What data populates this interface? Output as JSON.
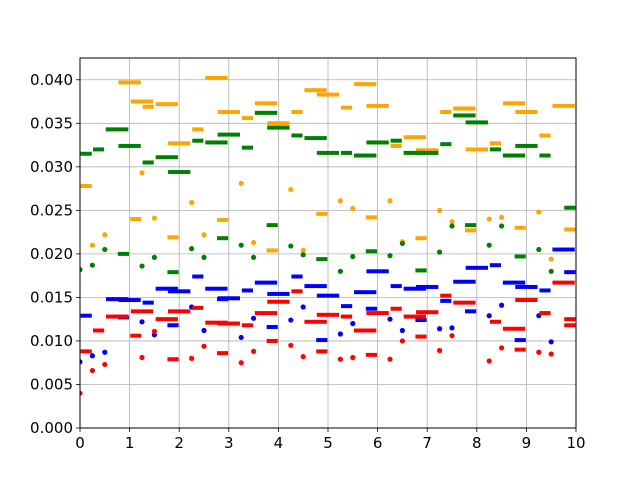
{
  "chart_data": {
    "type": "scatter",
    "title": "",
    "xlabel": "",
    "ylabel": "",
    "xlim": [
      0,
      10
    ],
    "ylim": [
      0,
      0.0425
    ],
    "grid": true,
    "legend": "none",
    "x_ticks": [
      "0",
      "1",
      "2",
      "3",
      "4",
      "5",
      "6",
      "7",
      "8",
      "9",
      "10"
    ],
    "y_ticks": [
      "0.000",
      "0.005",
      "0.010",
      "0.015",
      "0.020",
      "0.025",
      "0.030",
      "0.035",
      "0.040"
    ],
    "series": [
      {
        "color": "#ffa500",
        "values": [
          [
            0.0,
            0.0278,
            0.25
          ],
          [
            0.25,
            0.021,
            0.0
          ],
          [
            0.5,
            0.0343,
            0.25
          ],
          [
            0.5,
            0.0222,
            0.0
          ],
          [
            0.75,
            0.0397,
            0.5
          ],
          [
            1.0,
            0.024,
            0.25
          ],
          [
            1.0,
            0.0375,
            0.5
          ],
          [
            1.25,
            0.0293,
            0.0
          ],
          [
            1.25,
            0.0369,
            0.25
          ],
          [
            1.5,
            0.0241,
            0.0
          ],
          [
            1.5,
            0.0372,
            0.5
          ],
          [
            1.75,
            0.0219,
            0.25
          ],
          [
            1.75,
            0.0327,
            0.5
          ],
          [
            2.25,
            0.0259,
            0.0
          ],
          [
            2.25,
            0.0343,
            0.25
          ],
          [
            2.5,
            0.0222,
            0.0
          ],
          [
            2.5,
            0.0402,
            0.5
          ],
          [
            2.75,
            0.0239,
            0.25
          ],
          [
            2.75,
            0.0363,
            0.5
          ],
          [
            3.25,
            0.0281,
            0.0
          ],
          [
            3.25,
            0.0356,
            0.25
          ],
          [
            3.5,
            0.0213,
            0.0
          ],
          [
            3.5,
            0.0373,
            0.5
          ],
          [
            3.75,
            0.0204,
            0.25
          ],
          [
            3.75,
            0.035,
            0.5
          ],
          [
            4.25,
            0.0274,
            0.0
          ],
          [
            4.25,
            0.0363,
            0.25
          ],
          [
            4.5,
            0.0204,
            0.0
          ],
          [
            4.5,
            0.0388,
            0.5
          ],
          [
            4.75,
            0.0246,
            0.25
          ],
          [
            4.75,
            0.0383,
            0.5
          ],
          [
            5.25,
            0.0261,
            0.0
          ],
          [
            5.25,
            0.0368,
            0.25
          ],
          [
            5.5,
            0.0252,
            0.0
          ],
          [
            5.5,
            0.0395,
            0.5
          ],
          [
            5.75,
            0.0242,
            0.25
          ],
          [
            5.75,
            0.037,
            0.5
          ],
          [
            6.25,
            0.0261,
            0.0
          ],
          [
            6.25,
            0.0324,
            0.25
          ],
          [
            6.5,
            0.0214,
            0.0
          ],
          [
            6.5,
            0.0334,
            0.5
          ],
          [
            6.75,
            0.0218,
            0.25
          ],
          [
            6.75,
            0.0319,
            0.5
          ],
          [
            7.25,
            0.025,
            0.0
          ],
          [
            7.25,
            0.0363,
            0.25
          ],
          [
            7.5,
            0.0237,
            0.0
          ],
          [
            7.5,
            0.0367,
            0.5
          ],
          [
            7.75,
            0.0227,
            0.25
          ],
          [
            7.75,
            0.032,
            0.5
          ],
          [
            8.25,
            0.024,
            0.0
          ],
          [
            8.25,
            0.0327,
            0.25
          ],
          [
            8.5,
            0.0242,
            0.0
          ],
          [
            8.5,
            0.0373,
            0.5
          ],
          [
            8.75,
            0.023,
            0.25
          ],
          [
            8.75,
            0.0363,
            0.5
          ],
          [
            9.25,
            0.0248,
            0.0
          ],
          [
            9.25,
            0.0336,
            0.25
          ],
          [
            9.5,
            0.0194,
            0.0
          ],
          [
            9.5,
            0.037,
            0.5
          ],
          [
            9.75,
            0.0228,
            0.25
          ]
        ]
      },
      {
        "color": "#008000",
        "values": [
          [
            0.0,
            0.0182,
            0.0
          ],
          [
            0.0,
            0.0315,
            0.25
          ],
          [
            0.25,
            0.0187,
            0.0
          ],
          [
            0.25,
            0.032,
            0.25
          ],
          [
            0.5,
            0.0205,
            0.0
          ],
          [
            0.5,
            0.0343,
            0.5
          ],
          [
            0.75,
            0.02,
            0.25
          ],
          [
            0.75,
            0.0324,
            0.5
          ],
          [
            1.25,
            0.0186,
            0.0
          ],
          [
            1.25,
            0.0305,
            0.25
          ],
          [
            1.5,
            0.0196,
            0.0
          ],
          [
            1.5,
            0.0311,
            0.5
          ],
          [
            1.75,
            0.0179,
            0.25
          ],
          [
            1.75,
            0.0294,
            0.5
          ],
          [
            2.25,
            0.0206,
            0.0
          ],
          [
            2.25,
            0.033,
            0.25
          ],
          [
            2.5,
            0.0196,
            0.0
          ],
          [
            2.5,
            0.0328,
            0.5
          ],
          [
            2.75,
            0.0218,
            0.25
          ],
          [
            2.75,
            0.0337,
            0.5
          ],
          [
            3.25,
            0.021,
            0.0
          ],
          [
            3.25,
            0.0322,
            0.25
          ],
          [
            3.5,
            0.0196,
            0.0
          ],
          [
            3.5,
            0.0362,
            0.5
          ],
          [
            3.75,
            0.0233,
            0.25
          ],
          [
            3.75,
            0.0345,
            0.5
          ],
          [
            4.25,
            0.0209,
            0.0
          ],
          [
            4.25,
            0.0336,
            0.25
          ],
          [
            4.5,
            0.0199,
            0.0
          ],
          [
            4.5,
            0.0333,
            0.5
          ],
          [
            4.75,
            0.0194,
            0.25
          ],
          [
            4.75,
            0.0316,
            0.5
          ],
          [
            5.25,
            0.018,
            0.0
          ],
          [
            5.25,
            0.0316,
            0.25
          ],
          [
            5.5,
            0.0197,
            0.0
          ],
          [
            5.5,
            0.0313,
            0.5
          ],
          [
            5.75,
            0.0203,
            0.25
          ],
          [
            5.75,
            0.0328,
            0.5
          ],
          [
            6.25,
            0.0198,
            0.0
          ],
          [
            6.25,
            0.033,
            0.25
          ],
          [
            6.5,
            0.0212,
            0.0
          ],
          [
            6.5,
            0.0316,
            0.5
          ],
          [
            6.75,
            0.0181,
            0.25
          ],
          [
            6.75,
            0.0316,
            0.5
          ],
          [
            7.25,
            0.0202,
            0.0
          ],
          [
            7.25,
            0.0326,
            0.25
          ],
          [
            7.5,
            0.0232,
            0.0
          ],
          [
            7.5,
            0.0359,
            0.5
          ],
          [
            7.75,
            0.0233,
            0.25
          ],
          [
            7.75,
            0.0351,
            0.5
          ],
          [
            8.25,
            0.021,
            0.0
          ],
          [
            8.25,
            0.032,
            0.25
          ],
          [
            8.5,
            0.0232,
            0.0
          ],
          [
            8.5,
            0.0313,
            0.5
          ],
          [
            8.75,
            0.0197,
            0.25
          ],
          [
            8.75,
            0.0324,
            0.5
          ],
          [
            9.25,
            0.0205,
            0.0
          ],
          [
            9.25,
            0.0313,
            0.25
          ],
          [
            9.5,
            0.018,
            0.0
          ],
          [
            9.75,
            0.0253,
            0.25
          ]
        ]
      },
      {
        "color": "#0000ff",
        "values": [
          [
            0.0,
            0.0076,
            0.0
          ],
          [
            0.0,
            0.0129,
            0.25
          ],
          [
            0.25,
            0.0083,
            0.0
          ],
          [
            0.5,
            0.0148,
            0.5
          ],
          [
            0.5,
            0.0087,
            0.0
          ],
          [
            0.75,
            0.0127,
            0.25
          ],
          [
            0.75,
            0.0147,
            0.5
          ],
          [
            1.25,
            0.0122,
            0.0
          ],
          [
            1.25,
            0.0144,
            0.25
          ],
          [
            1.5,
            0.0107,
            0.0
          ],
          [
            1.5,
            0.016,
            0.5
          ],
          [
            1.75,
            0.0118,
            0.25
          ],
          [
            1.75,
            0.0157,
            0.5
          ],
          [
            2.25,
            0.0139,
            0.0
          ],
          [
            2.25,
            0.0174,
            0.25
          ],
          [
            2.5,
            0.0112,
            0.0
          ],
          [
            2.5,
            0.016,
            0.5
          ],
          [
            2.75,
            0.0148,
            0.25
          ],
          [
            2.75,
            0.0149,
            0.5
          ],
          [
            3.25,
            0.0104,
            0.0
          ],
          [
            3.25,
            0.0158,
            0.25
          ],
          [
            3.5,
            0.0126,
            0.0
          ],
          [
            3.5,
            0.0167,
            0.5
          ],
          [
            3.75,
            0.0116,
            0.25
          ],
          [
            3.75,
            0.0154,
            0.5
          ],
          [
            4.25,
            0.0124,
            0.0
          ],
          [
            4.25,
            0.0174,
            0.25
          ],
          [
            4.5,
            0.0139,
            0.0
          ],
          [
            4.5,
            0.0163,
            0.5
          ],
          [
            4.75,
            0.0101,
            0.25
          ],
          [
            4.75,
            0.0152,
            0.5
          ],
          [
            5.25,
            0.0108,
            0.0
          ],
          [
            5.25,
            0.014,
            0.25
          ],
          [
            5.5,
            0.012,
            0.0
          ],
          [
            5.5,
            0.0156,
            0.5
          ],
          [
            5.75,
            0.0137,
            0.25
          ],
          [
            5.75,
            0.018,
            0.5
          ],
          [
            6.25,
            0.0125,
            0.0
          ],
          [
            6.25,
            0.0163,
            0.25
          ],
          [
            6.5,
            0.0112,
            0.0
          ],
          [
            6.5,
            0.016,
            0.5
          ],
          [
            6.75,
            0.0124,
            0.25
          ],
          [
            6.75,
            0.0162,
            0.5
          ],
          [
            7.25,
            0.0114,
            0.0
          ],
          [
            7.25,
            0.0146,
            0.25
          ],
          [
            7.5,
            0.0115,
            0.0
          ],
          [
            7.5,
            0.0168,
            0.5
          ],
          [
            7.75,
            0.0134,
            0.25
          ],
          [
            7.75,
            0.0184,
            0.5
          ],
          [
            8.25,
            0.0129,
            0.0
          ],
          [
            8.25,
            0.0187,
            0.25
          ],
          [
            8.5,
            0.0141,
            0.0
          ],
          [
            8.5,
            0.0167,
            0.5
          ],
          [
            8.75,
            0.0101,
            0.25
          ],
          [
            8.75,
            0.0162,
            0.5
          ],
          [
            9.25,
            0.0129,
            0.0
          ],
          [
            9.25,
            0.0158,
            0.25
          ],
          [
            9.5,
            0.0099,
            0.0
          ],
          [
            9.5,
            0.0205,
            0.5
          ],
          [
            9.75,
            0.0179,
            0.25
          ]
        ]
      },
      {
        "color": "#ff0000",
        "values": [
          [
            0.0,
            0.004,
            0.0
          ],
          [
            0.0,
            0.0088,
            0.25
          ],
          [
            0.25,
            0.0066,
            0.0
          ],
          [
            0.25,
            0.0112,
            0.25
          ],
          [
            0.5,
            0.0073,
            0.0
          ],
          [
            0.5,
            0.0128,
            0.5
          ],
          [
            1.0,
            0.0106,
            0.25
          ],
          [
            1.0,
            0.0134,
            0.5
          ],
          [
            1.25,
            0.0081,
            0.0
          ],
          [
            1.5,
            0.0111,
            0.0
          ],
          [
            1.5,
            0.0125,
            0.5
          ],
          [
            1.75,
            0.0079,
            0.25
          ],
          [
            1.75,
            0.0134,
            0.5
          ],
          [
            2.25,
            0.008,
            0.0
          ],
          [
            2.25,
            0.0138,
            0.25
          ],
          [
            2.5,
            0.0094,
            0.0
          ],
          [
            2.5,
            0.0121,
            0.5
          ],
          [
            2.75,
            0.0086,
            0.25
          ],
          [
            2.75,
            0.012,
            0.5
          ],
          [
            3.25,
            0.0075,
            0.0
          ],
          [
            3.25,
            0.0118,
            0.25
          ],
          [
            3.5,
            0.0088,
            0.0
          ],
          [
            3.5,
            0.0132,
            0.5
          ],
          [
            3.75,
            0.01,
            0.25
          ],
          [
            3.75,
            0.0145,
            0.5
          ],
          [
            4.25,
            0.0095,
            0.0
          ],
          [
            4.25,
            0.0157,
            0.25
          ],
          [
            4.5,
            0.0082,
            0.0
          ],
          [
            4.5,
            0.0122,
            0.5
          ],
          [
            4.75,
            0.0088,
            0.25
          ],
          [
            4.75,
            0.013,
            0.5
          ],
          [
            5.25,
            0.0079,
            0.0
          ],
          [
            5.25,
            0.0128,
            0.25
          ],
          [
            5.5,
            0.0081,
            0.0
          ],
          [
            5.5,
            0.0112,
            0.5
          ],
          [
            5.75,
            0.0084,
            0.25
          ],
          [
            5.75,
            0.0132,
            0.5
          ],
          [
            6.25,
            0.0079,
            0.0
          ],
          [
            6.25,
            0.0137,
            0.25
          ],
          [
            6.5,
            0.01,
            0.0
          ],
          [
            6.5,
            0.0128,
            0.5
          ],
          [
            6.75,
            0.0105,
            0.25
          ],
          [
            6.75,
            0.0133,
            0.5
          ],
          [
            7.25,
            0.0089,
            0.0
          ],
          [
            7.25,
            0.0152,
            0.25
          ],
          [
            7.5,
            0.0106,
            0.0
          ],
          [
            7.5,
            0.0144,
            0.5
          ],
          [
            8.25,
            0.0077,
            0.0
          ],
          [
            8.25,
            0.0122,
            0.25
          ],
          [
            8.5,
            0.0092,
            0.0
          ],
          [
            8.5,
            0.0114,
            0.5
          ],
          [
            8.75,
            0.009,
            0.25
          ],
          [
            8.75,
            0.0147,
            0.5
          ],
          [
            9.25,
            0.0087,
            0.0
          ],
          [
            9.25,
            0.0132,
            0.25
          ],
          [
            9.5,
            0.0085,
            0.0
          ],
          [
            9.5,
            0.0167,
            0.5
          ],
          [
            9.75,
            0.0118,
            0.25
          ],
          [
            9.75,
            0.0125,
            0.25
          ]
        ]
      }
    ]
  }
}
